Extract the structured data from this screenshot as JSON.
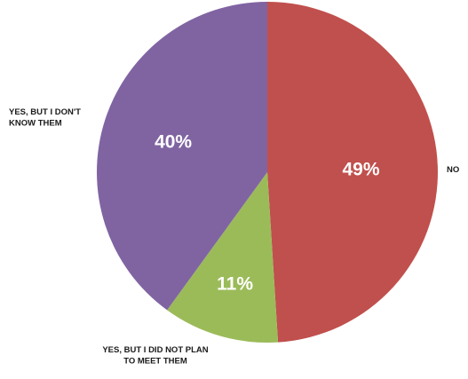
{
  "chart_data": {
    "type": "pie",
    "start_angle_deg": 0,
    "direction": "clockwise",
    "slices": [
      {
        "label_lines": [
          "NO"
        ],
        "value": 49,
        "value_label": "49%",
        "color": "#c0504d"
      },
      {
        "label_lines": [
          "YES, BUT I DID NOT PLAN",
          "TO MEET THEM"
        ],
        "value": 11,
        "value_label": "11%",
        "color": "#9bbb59"
      },
      {
        "label_lines": [
          "YES, BUT I DON'T",
          "KNOW THEM"
        ],
        "value": 40,
        "value_label": "40%",
        "color": "#8064a2"
      }
    ],
    "legend": "none"
  }
}
